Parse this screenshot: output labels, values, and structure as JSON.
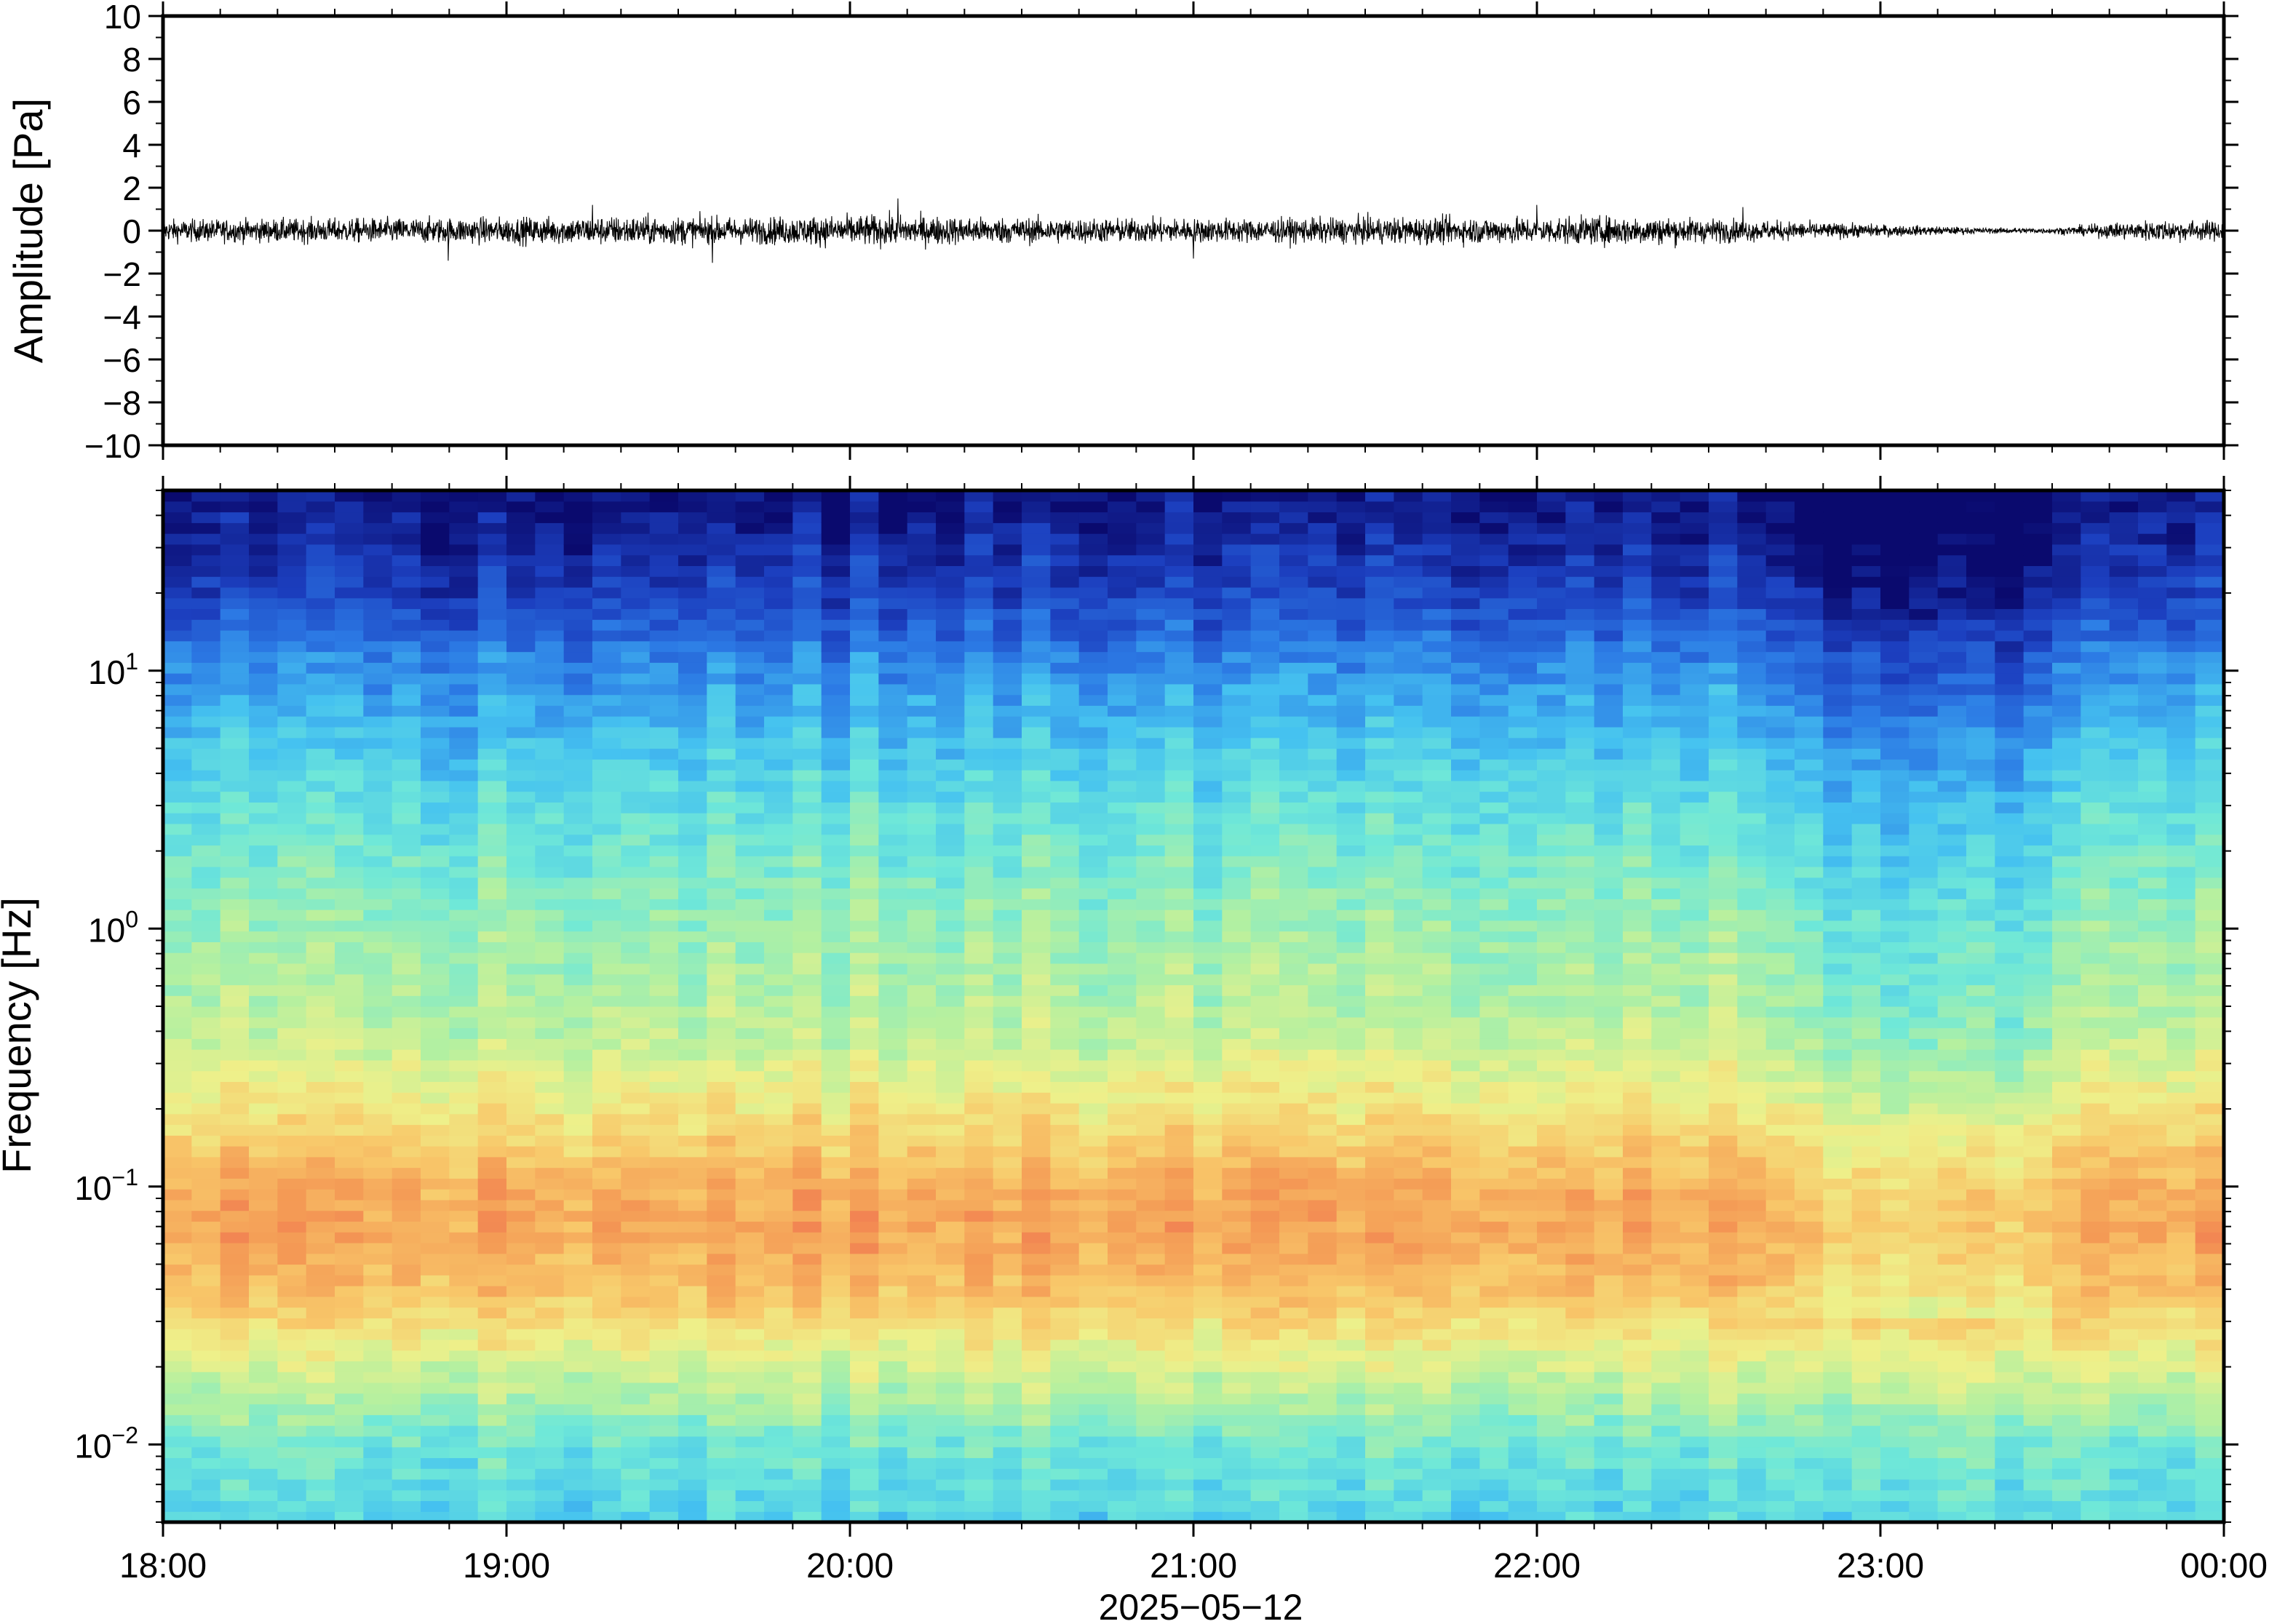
{
  "chart_data": [
    {
      "type": "line",
      "ylabel": "Amplitude [Pa]",
      "ylim": [
        -10,
        10
      ],
      "yticks": [
        "10",
        "8",
        "6",
        "4",
        "2",
        "0",
        "−2",
        "−4",
        "−6",
        "−8",
        "−10"
      ],
      "ytick_values": [
        10,
        8,
        6,
        4,
        2,
        0,
        -2,
        -4,
        -6,
        -8,
        -10
      ],
      "xlim": [
        "18:00",
        "00:00"
      ],
      "series": [
        {
          "color": "#000000",
          "envelope_x_hours": [
            0,
            0.5,
            1.0,
            1.4,
            1.7,
            2.05,
            2.4,
            2.8,
            3.2,
            3.6,
            4.0,
            4.3,
            4.6,
            5.0,
            5.3,
            5.5,
            5.8,
            6.0
          ],
          "envelope_pa": [
            0.45,
            0.5,
            0.55,
            0.6,
            0.55,
            0.65,
            0.55,
            0.5,
            0.5,
            0.55,
            0.55,
            0.6,
            0.45,
            0.25,
            0.12,
            0.12,
            0.45,
            0.4
          ],
          "notable_peaks": [
            {
              "t_hours": 0.83,
              "pa": -1.4
            },
            {
              "t_hours": 1.25,
              "pa": 1.2
            },
            {
              "t_hours": 1.6,
              "pa": -1.5
            },
            {
              "t_hours": 2.14,
              "pa": 1.5
            },
            {
              "t_hours": 3.0,
              "pa": -1.3
            },
            {
              "t_hours": 4.0,
              "pa": 1.2
            },
            {
              "t_hours": 4.6,
              "pa": 1.1
            }
          ]
        }
      ]
    },
    {
      "type": "heatmap",
      "ylabel": "Frequency [Hz]",
      "yscale": "log",
      "ylim_hz": [
        0.005,
        50
      ],
      "yticks": [
        {
          "base": "10",
          "exp": "1",
          "value": 10
        },
        {
          "base": "10",
          "exp": "0",
          "value": 1
        },
        {
          "base": "10",
          "exp": "−1",
          "value": 0.1
        },
        {
          "base": "10",
          "exp": "−2",
          "value": 0.01
        }
      ],
      "colormap": [
        "#0a0a6e",
        "#1c3fbf",
        "#2c7be5",
        "#45c2f0",
        "#6fe8d8",
        "#b4f0a0",
        "#eef08a",
        "#f8c86a",
        "#f49a55",
        "#ee5a4e"
      ],
      "time_columns": 72,
      "freq_rows": 96,
      "profile_anchors_hz": [
        0.005,
        0.01,
        0.02,
        0.04,
        0.07,
        0.1,
        0.2,
        0.4,
        1,
        3,
        10,
        20,
        50
      ],
      "profile_anchors_power": [
        0.38,
        0.45,
        0.62,
        0.8,
        0.86,
        0.84,
        0.7,
        0.58,
        0.52,
        0.42,
        0.26,
        0.12,
        0.02
      ],
      "quiet_period_hours": [
        4.6,
        5.7
      ]
    }
  ],
  "xaxis": {
    "ticks": [
      "18:00",
      "19:00",
      "20:00",
      "21:00",
      "22:00",
      "23:00",
      "00:00"
    ],
    "date_label": "2025−05−12",
    "minor_per_major": 6
  }
}
